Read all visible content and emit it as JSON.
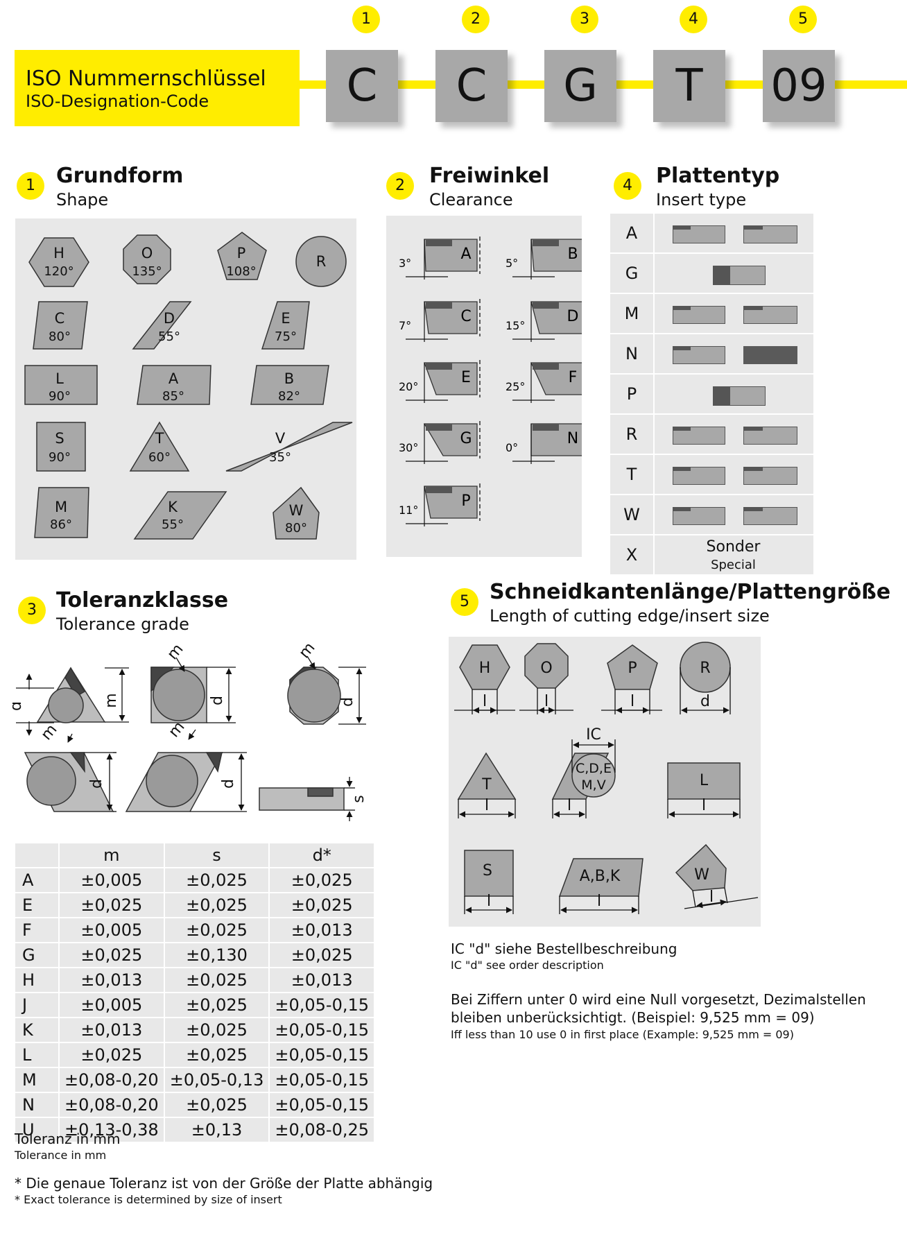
{
  "header": {
    "title": "ISO Nummernschlüssel",
    "subtitle": "ISO-Designation-Code",
    "code": [
      {
        "num": "1",
        "letter": "C"
      },
      {
        "num": "2",
        "letter": "C"
      },
      {
        "num": "3",
        "letter": "G"
      },
      {
        "num": "4",
        "letter": "T"
      },
      {
        "num": "5",
        "letter": "09"
      }
    ]
  },
  "colors": {
    "yellow": "#ffed00",
    "panel": "#e8e8e8",
    "shape": "#a8a8a8",
    "dark": "#5a5a5a"
  },
  "shape": {
    "num": "1",
    "title": "Grundform",
    "subtitle": "Shape",
    "items": [
      {
        "l": "H",
        "a": "120°"
      },
      {
        "l": "O",
        "a": "135°"
      },
      {
        "l": "P",
        "a": "108°"
      },
      {
        "l": "R",
        "a": ""
      },
      {
        "l": "C",
        "a": "80°"
      },
      {
        "l": "D",
        "a": "55°"
      },
      {
        "l": "E",
        "a": "75°"
      },
      {
        "l": "L",
        "a": "90°"
      },
      {
        "l": "A",
        "a": "85°"
      },
      {
        "l": "B",
        "a": "82°"
      },
      {
        "l": "S",
        "a": "90°"
      },
      {
        "l": "T",
        "a": "60°"
      },
      {
        "l": "V",
        "a": "35°"
      },
      {
        "l": "M",
        "a": "86°"
      },
      {
        "l": "K",
        "a": "55°"
      },
      {
        "l": "W",
        "a": "80°"
      }
    ]
  },
  "clearance": {
    "num": "2",
    "title": "Freiwinkel",
    "subtitle": "Clearance",
    "items": [
      {
        "l": "A",
        "a": "3°"
      },
      {
        "l": "B",
        "a": "5°"
      },
      {
        "l": "C",
        "a": "7°"
      },
      {
        "l": "D",
        "a": "15°"
      },
      {
        "l": "E",
        "a": "20°"
      },
      {
        "l": "F",
        "a": "25°"
      },
      {
        "l": "G",
        "a": "30°"
      },
      {
        "l": "N",
        "a": "0°"
      },
      {
        "l": "P",
        "a": "11°"
      }
    ]
  },
  "insert_type": {
    "num": "4",
    "title": "Plattentyp",
    "subtitle": "Insert type",
    "rows": [
      "A",
      "G",
      "M",
      "N",
      "P",
      "R",
      "T",
      "W",
      "X"
    ],
    "special_de": "Sonder",
    "special_en": "Special"
  },
  "tolerance": {
    "num": "3",
    "title": "Toleranzklasse",
    "subtitle": "Tolerance grade",
    "labels": {
      "m": "m",
      "d": "d",
      "s": "s"
    },
    "headers": [
      "m",
      "s",
      "d*"
    ],
    "rows": [
      {
        "k": "A",
        "m": "±0,005",
        "s": "±0,025",
        "d": "±0,025"
      },
      {
        "k": "E",
        "m": "±0,025",
        "s": "±0,025",
        "d": "±0,025"
      },
      {
        "k": "F",
        "m": "±0,005",
        "s": "±0,025",
        "d": "±0,013"
      },
      {
        "k": "G",
        "m": "±0,025",
        "s": "±0,130",
        "d": "±0,025"
      },
      {
        "k": "H",
        "m": "±0,013",
        "s": "±0,025",
        "d": "±0,013"
      },
      {
        "k": "J",
        "m": "±0,005",
        "s": "±0,025",
        "d": "±0,05-0,15"
      },
      {
        "k": "K",
        "m": "±0,013",
        "s": "±0,025",
        "d": "±0,05-0,15"
      },
      {
        "k": "L",
        "m": "±0,025",
        "s": "±0,025",
        "d": "±0,05-0,15"
      },
      {
        "k": "M",
        "m": "±0,08-0,20",
        "s": "±0,05-0,13",
        "d": "±0,05-0,15"
      },
      {
        "k": "N",
        "m": "±0,08-0,20",
        "s": "±0,025",
        "d": "±0,05-0,15"
      },
      {
        "k": "U",
        "m": "±0,13-0,38",
        "s": "±0,13",
        "d": "±0,08-0,25"
      }
    ],
    "unit_de": "Toleranz in mm",
    "unit_en": "Tolerance in mm",
    "note_de": "* Die genaue Toleranz ist von der Größe der Platte abhängig",
    "note_en": "* Exact tolerance is determined by size of insert"
  },
  "size": {
    "num": "5",
    "title": "Schneidkantenlänge/Plattengröße",
    "subtitle": "Length of cutting edge/insert size",
    "labels": {
      "H": "H",
      "O": "O",
      "P": "P",
      "R": "R",
      "T": "T",
      "CDE": "C,D,E",
      "MV": "M,V",
      "L": "L",
      "S": "S",
      "ABK": "A,B,K",
      "W": "W",
      "l": "l",
      "d": "d",
      "IC": "IC"
    },
    "note1_de": "IC \"d\" siehe Bestellbeschreibung",
    "note1_en": "IC \"d\" see order description",
    "note2_de": "Bei Ziffern unter 0 wird eine Null vorgesetzt, Dezimalstellen bleiben unberücksichtigt. (Beispiel: 9,525 mm = 09)",
    "note2_en": "Iff less than 10 use 0 in first place (Example: 9,525 mm = 09)"
  }
}
